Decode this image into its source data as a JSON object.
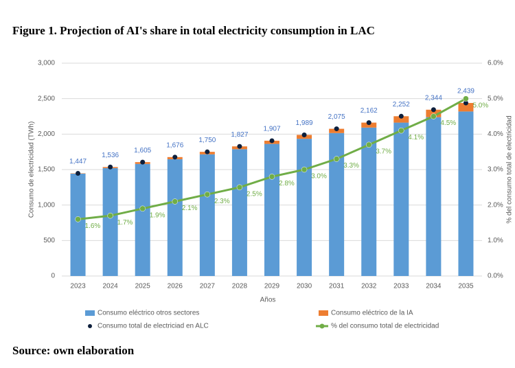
{
  "chart_data": {
    "type": "bar",
    "title": "Figure 1. Projection of AI's share in total electricity consumption in LAC",
    "source": "Source: own elaboration",
    "xlabel": "Años",
    "ylabel": "Consumo de electricidad (TWh)",
    "y2label": "% del consumo total de electricidad",
    "categories": [
      "2023",
      "2024",
      "2025",
      "2026",
      "2027",
      "2028",
      "2029",
      "2030",
      "2031",
      "2032",
      "2033",
      "2034",
      "2035"
    ],
    "ylim": [
      0,
      3000
    ],
    "yticks": [
      0,
      500,
      {
        "value": 1000,
        "label": "1,000"
      },
      {
        "value": 1500,
        "label": "1,500"
      },
      {
        "value": 2000,
        "label": "2,000"
      },
      {
        "value": 2500,
        "label": "2,500"
      },
      {
        "value": 3000,
        "label": "3,000"
      }
    ],
    "y2lim": [
      0,
      6
    ],
    "y2ticks": [
      {
        "value": 0,
        "label": "0.0%"
      },
      {
        "value": 1,
        "label": "1.0%"
      },
      {
        "value": 2,
        "label": "2.0%"
      },
      {
        "value": 3,
        "label": "3.0%"
      },
      {
        "value": 4,
        "label": "4.0%"
      },
      {
        "value": 5,
        "label": "5.0%"
      },
      {
        "value": 6,
        "label": "6.0%"
      }
    ],
    "grid": true,
    "series": [
      {
        "name": "Consumo eléctrico otros sectores",
        "type": "bar",
        "color": "#5b9bd5",
        "values": [
          1442,
          1521,
          1580,
          1646,
          1715,
          1787,
          1862,
          1934,
          2015,
          2092,
          2162,
          2239,
          2319
        ]
      },
      {
        "name": "Consumo eléctrico de la IA",
        "type": "bar",
        "color": "#ed7d31",
        "values": [
          5,
          15,
          25,
          30,
          35,
          40,
          45,
          55,
          60,
          70,
          90,
          105,
          120
        ]
      },
      {
        "name": "Consumo total de electriciad en ALC",
        "type": "scatter",
        "color": "#0d1f3c",
        "values": [
          1447,
          1536,
          1605,
          1676,
          1750,
          1827,
          1907,
          1989,
          2075,
          2162,
          2252,
          2344,
          2439
        ],
        "value_labels": [
          "1,447",
          "1,536",
          "1,605",
          "1,676",
          "1,750",
          "1,827",
          "1,907",
          "1,989",
          "2,075",
          "2,162",
          "2,252",
          "2,344",
          "2,439"
        ]
      },
      {
        "name": "% del consumo total de electricidad",
        "type": "line",
        "axis": "y2",
        "color": "#70ad47",
        "values": [
          1.6,
          1.7,
          1.9,
          2.1,
          2.3,
          2.5,
          2.8,
          3.0,
          3.3,
          3.7,
          4.1,
          4.5,
          5.0
        ],
        "value_labels": [
          "1.6%",
          "1.7%",
          "1.9%",
          "2.1%",
          "2.3%",
          "2.5%",
          "2.8%",
          "3.0%",
          "3.3%",
          "3.7%",
          "4.1%",
          "4.5%",
          "5.0%"
        ]
      }
    ]
  }
}
